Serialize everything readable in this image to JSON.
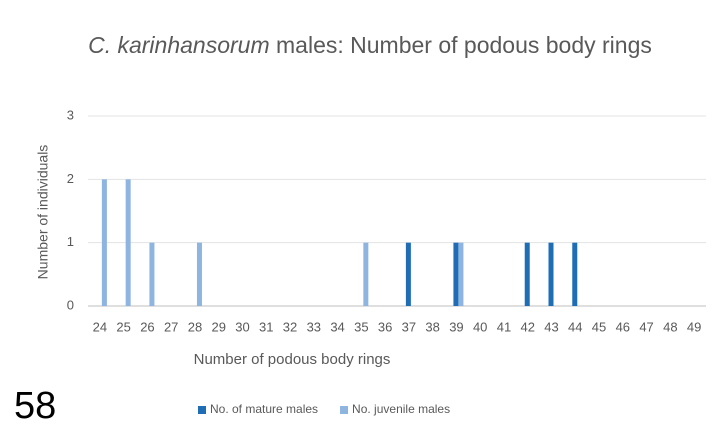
{
  "chart_data": {
    "type": "bar",
    "title": {
      "italic": "C. karinhansorum",
      "rest": "males: Number of podous body rings"
    },
    "x_label": "Number of podous body rings",
    "y_label": "Number of individuals",
    "annotation": "58",
    "categories": [
      24,
      25,
      26,
      27,
      28,
      29,
      30,
      31,
      32,
      33,
      34,
      35,
      36,
      37,
      38,
      39,
      40,
      41,
      42,
      43,
      44,
      45,
      46,
      47,
      48,
      49
    ],
    "series": [
      {
        "name": "No. of mature males",
        "color": "#1f6db4",
        "values": [
          0,
          0,
          0,
          0,
          0,
          0,
          0,
          0,
          0,
          0,
          0,
          0,
          0,
          1,
          0,
          1,
          0,
          0,
          1,
          1,
          1,
          0,
          0,
          0,
          0,
          0
        ]
      },
      {
        "name": "No. juvenile males",
        "color": "#8eb4e0",
        "values": [
          2,
          2,
          1,
          0,
          1,
          0,
          0,
          0,
          0,
          0,
          0,
          1,
          0,
          0,
          0,
          1,
          0,
          0,
          0,
          0,
          0,
          0,
          0,
          0,
          0,
          0
        ]
      }
    ],
    "ylim": [
      0,
      3
    ],
    "yticks": [
      0,
      1,
      2,
      3
    ],
    "grid": true,
    "legend": "bottom"
  }
}
